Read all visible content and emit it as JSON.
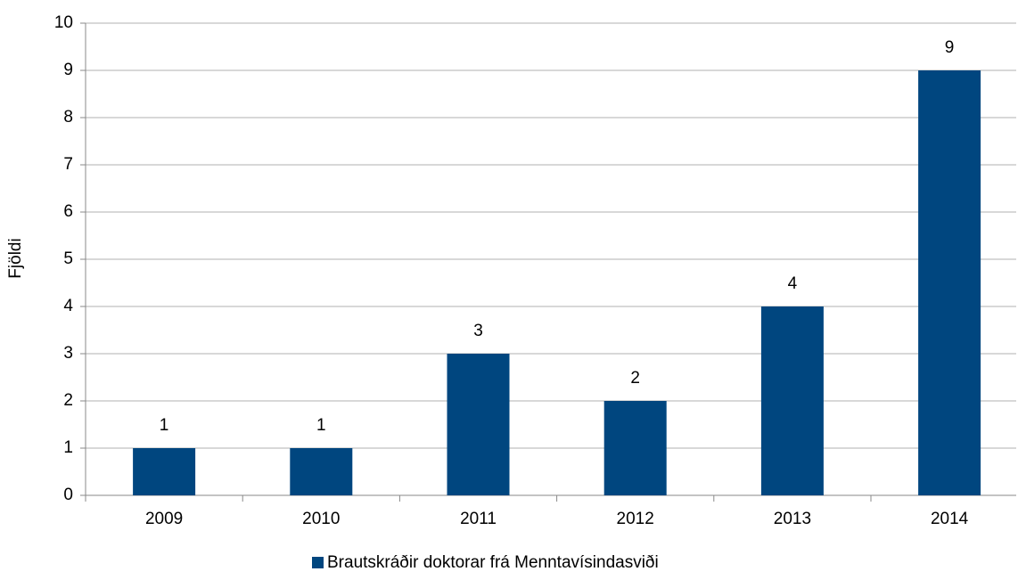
{
  "chart_data": {
    "type": "bar",
    "y_label": "Fjöldi",
    "categories": [
      "2009",
      "2010",
      "2011",
      "2012",
      "2013",
      "2014"
    ],
    "series": [
      {
        "name": "Brautskráðir doktorar frá Menntavísindasviði",
        "color": "#00467f",
        "values": [
          1,
          1,
          3,
          2,
          4,
          9
        ]
      }
    ],
    "ylim": [
      0,
      10
    ],
    "yticks": [
      0,
      1,
      2,
      3,
      4,
      5,
      6,
      7,
      8,
      9,
      10
    ],
    "grid": true
  }
}
